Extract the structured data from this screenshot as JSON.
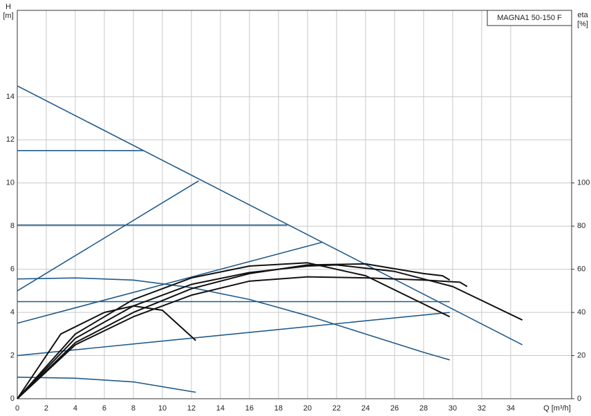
{
  "chart_data": {
    "type": "line",
    "title": "MAGNA1 50-150 F",
    "ylabel": [
      "H",
      "[m]"
    ],
    "y2label": [
      "eta",
      "[%]"
    ],
    "xlabel": "Q [m³/h]",
    "xlim": [
      0,
      38.2
    ],
    "xticks": [
      0,
      2,
      4,
      6,
      8,
      10,
      12,
      14,
      16,
      18,
      20,
      22,
      24,
      26,
      28,
      30,
      32,
      34
    ],
    "ylim": [
      0,
      18
    ],
    "yticks": [
      0,
      2,
      4,
      6,
      8,
      10,
      12,
      14
    ],
    "y2lim": [
      0,
      180
    ],
    "y2ticks": [
      0,
      20,
      40,
      60,
      80,
      100
    ],
    "grid": true,
    "series": [
      {
        "color": "#1f5a8a",
        "x": [
          0,
          34.8
        ],
        "values": [
          14.5,
          2.5
        ]
      },
      {
        "color": "#1f5a8a",
        "x": [
          0,
          8.7
        ],
        "values": [
          11.5,
          11.5
        ]
      },
      {
        "color": "#1f5a8a",
        "x": [
          0,
          18.6
        ],
        "values": [
          8.05,
          8.05
        ]
      },
      {
        "color": "#1f5a8a",
        "x": [
          0,
          29.8
        ],
        "values": [
          4.5,
          4.5
        ]
      },
      {
        "color": "#1f5a8a",
        "x": [
          0,
          12.5
        ],
        "values": [
          5.0,
          10.1
        ]
      },
      {
        "color": "#1f5a8a",
        "x": [
          0,
          21
        ],
        "values": [
          3.5,
          7.25
        ]
      },
      {
        "color": "#1f5a8a",
        "x": [
          0,
          29.8
        ],
        "values": [
          2.0,
          4.0
        ]
      },
      {
        "color": "#1f5a8a",
        "x": [
          0,
          4,
          8,
          12,
          16,
          20,
          24,
          28,
          29.8
        ],
        "values": [
          5.55,
          5.6,
          5.5,
          5.15,
          4.6,
          3.85,
          3.0,
          2.15,
          1.8
        ]
      },
      {
        "color": "#1f5a8a",
        "x": [
          0,
          4,
          8,
          12.3
        ],
        "values": [
          1.0,
          0.95,
          0.78,
          0.3
        ]
      },
      {
        "color": "#111111",
        "axis": "y2",
        "x": [
          0,
          4,
          8,
          12,
          16,
          20,
          22,
          26,
          30,
          34.8
        ],
        "values": [
          0,
          28,
          43,
          53,
          58.5,
          61.5,
          62,
          59,
          52,
          36.5
        ]
      },
      {
        "color": "#111111",
        "axis": "y2",
        "x": [
          0,
          3,
          6,
          8,
          10,
          12.3
        ],
        "values": [
          0,
          30,
          40,
          43,
          41,
          27
        ]
      },
      {
        "color": "#111111",
        "axis": "y2",
        "x": [
          0,
          4,
          8,
          12,
          16,
          20,
          24,
          28,
          30.5,
          31
        ],
        "values": [
          0,
          25,
          38,
          48,
          54.5,
          56.5,
          56,
          55,
          54,
          52
        ]
      },
      {
        "color": "#111111",
        "axis": "y2",
        "x": [
          0,
          4,
          8,
          12,
          16,
          20,
          24,
          29.8
        ],
        "values": [
          0,
          30,
          46,
          56,
          61.5,
          63,
          57,
          38
        ]
      },
      {
        "color": "#111111",
        "axis": "y2",
        "x": [
          0,
          4,
          8,
          12,
          16,
          20,
          24,
          28,
          29.3,
          29.8
        ],
        "values": [
          0,
          26,
          40,
          51,
          58,
          62,
          62.5,
          58,
          57,
          55
        ]
      }
    ]
  }
}
